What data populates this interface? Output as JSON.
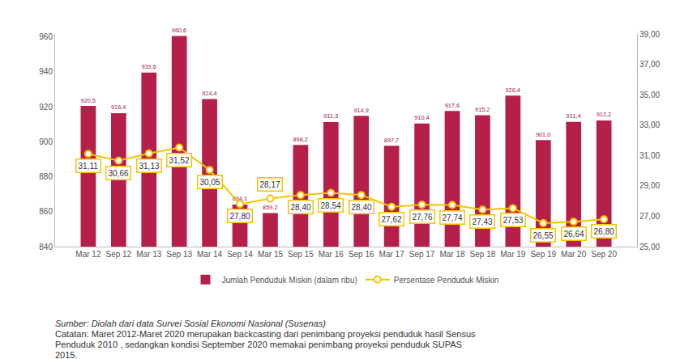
{
  "chart_data": {
    "type": "bar",
    "categories": [
      "Mar 12",
      "Sep 12",
      "Mar 13",
      "Sep 13",
      "Mar 14",
      "Sep 14",
      "Mar 15",
      "Sep 15",
      "Mar 16",
      "Sep 16",
      "Mar 17",
      "Sep 17",
      "Mar 18",
      "Sep 18",
      "Mar 19",
      "Sep 19",
      "Mar 20",
      "Sep 20"
    ],
    "series": [
      {
        "name": "Jumlah Penduduk Miskin (dalam ribu)",
        "type": "bar",
        "color": "#b5204a",
        "values": [
          920.5,
          916.4,
          939.6,
          960.6,
          924.4,
          864.1,
          859.2,
          898.2,
          911.3,
          914.9,
          897.7,
          910.4,
          917.6,
          915.2,
          926.4,
          901.0,
          911.4,
          912.2
        ],
        "value_labels": [
          "920,5",
          "916,4",
          "939,6",
          "960,6",
          "924,4",
          "864,1",
          "859,2",
          "898,2",
          "911,3",
          "914,9",
          "897,7",
          "910,4",
          "917,6",
          "915,2",
          "926,4",
          "901,0",
          "911,4",
          "912,2"
        ]
      },
      {
        "name": "Persentase Penduduk Miskin",
        "type": "line",
        "axis": "y2",
        "color": "#f5c400",
        "marker": "circle",
        "line_style": "solid",
        "values": [
          31.11,
          30.66,
          31.13,
          31.52,
          30.05,
          27.8,
          28.17,
          28.4,
          28.54,
          28.4,
          27.62,
          27.76,
          27.74,
          27.43,
          27.53,
          26.55,
          26.64,
          26.8
        ],
        "value_labels": [
          "31,11",
          "30,66",
          "31,13",
          "31,52",
          "30,05",
          "27,80",
          "28,17",
          "28,40",
          "28,54",
          "28,40",
          "27,62",
          "27,76",
          "27,74",
          "27,43",
          "27,53",
          "26,55",
          "26,64",
          "26,80"
        ]
      }
    ],
    "ylim": [
      840,
      961.7
    ],
    "yticks": [
      840,
      860,
      880,
      900,
      920,
      940,
      960
    ],
    "y2lim": [
      25,
      39
    ],
    "y2ticks": [
      {
        "value": 25,
        "label": "25,00"
      },
      {
        "value": 27,
        "label": "27,00"
      },
      {
        "value": 29,
        "label": "29,00"
      },
      {
        "value": 31,
        "label": "31,00"
      },
      {
        "value": 33,
        "label": "33,00"
      },
      {
        "value": 35,
        "label": "35,00"
      },
      {
        "value": 37,
        "label": "37,00"
      },
      {
        "value": 39,
        "label": "39,00"
      }
    ],
    "grid": false,
    "legend": "bottom",
    "data_labels": true,
    "annotations": [
      "Sumber: Diolah dari data Survei Sosial Ekonomi Nasional (Susenas)",
      "Catatan: Maret 2012-Maret 2020 merupakan backcasting dari penimbang proyeksi penduduk hasil Sensus Penduduk 2010 , sedangkan kondisi  September 2020 memakai penimbang proyeksi penduduk  SUPAS 2015."
    ]
  }
}
